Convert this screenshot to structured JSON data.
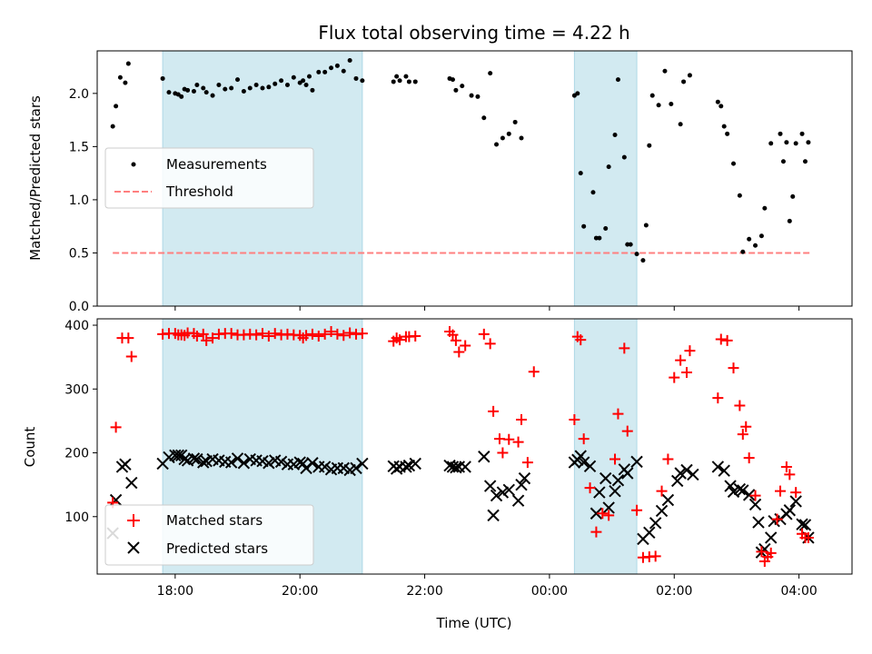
{
  "chart_data": [
    {
      "type": "scatter",
      "title": "Flux total observing time = 4.22 h",
      "xlabel": "",
      "ylabel": "Matched/Predicted stars",
      "xlim": [
        16.75,
        28.85
      ],
      "ylim": [
        0,
        2.4
      ],
      "yticks": [
        0.0,
        0.5,
        1.0,
        1.5,
        2.0
      ],
      "ytick_labels": [
        "0.0",
        "0.5",
        "1.0",
        "1.5",
        "2.0"
      ],
      "grid": false,
      "legend_location": "center-left",
      "shaded_intervals": [
        [
          17.8,
          21.0
        ],
        [
          24.4,
          25.4
        ]
      ],
      "series": [
        {
          "name": "Measurements",
          "kind": "scatter",
          "color": "#000000",
          "x": [
            17.0,
            17.05,
            17.12,
            17.2,
            17.25,
            17.8,
            17.9,
            18.0,
            18.05,
            18.1,
            18.15,
            18.2,
            18.3,
            18.35,
            18.45,
            18.5,
            18.6,
            18.7,
            18.8,
            18.9,
            19.0,
            19.1,
            19.2,
            19.3,
            19.4,
            19.5,
            19.6,
            19.7,
            19.8,
            19.9,
            20.0,
            20.05,
            20.1,
            20.15,
            20.2,
            20.3,
            20.4,
            20.5,
            20.6,
            20.7,
            20.8,
            20.9,
            21.0,
            21.5,
            21.55,
            21.6,
            21.7,
            21.75,
            21.85,
            22.4,
            22.45,
            22.5,
            22.6,
            22.75,
            22.85,
            22.95,
            23.05,
            23.15,
            23.25,
            23.35,
            23.45,
            23.55,
            24.4,
            24.45,
            24.5,
            24.55,
            24.7,
            24.75,
            24.8,
            24.9,
            24.95,
            25.05,
            25.1,
            25.2,
            25.25,
            25.3,
            25.4,
            25.5,
            25.55,
            25.6,
            25.65,
            25.75,
            25.85,
            25.95,
            26.1,
            26.15,
            26.25,
            26.7,
            26.75,
            26.8,
            26.85,
            26.95,
            27.05,
            27.1,
            27.2,
            27.3,
            27.4,
            27.45,
            27.55,
            27.7,
            27.75,
            27.8,
            27.85,
            27.9,
            27.95,
            28.05,
            28.1,
            28.15
          ],
          "y": [
            1.69,
            1.88,
            2.15,
            2.1,
            2.28,
            2.14,
            2.01,
            2.0,
            1.99,
            1.97,
            2.04,
            2.03,
            2.02,
            2.08,
            2.05,
            2.01,
            1.98,
            2.08,
            2.04,
            2.05,
            2.13,
            2.02,
            2.05,
            2.08,
            2.05,
            2.06,
            2.09,
            2.12,
            2.08,
            2.15,
            2.1,
            2.12,
            2.08,
            2.16,
            2.03,
            2.2,
            2.2,
            2.24,
            2.26,
            2.21,
            2.31,
            2.14,
            2.12,
            2.11,
            2.16,
            2.12,
            2.16,
            2.11,
            2.11,
            2.14,
            2.13,
            2.03,
            2.07,
            1.98,
            1.97,
            1.77,
            2.19,
            1.52,
            1.58,
            1.62,
            1.73,
            1.58,
            1.98,
            2.0,
            1.25,
            0.75,
            1.07,
            0.64,
            0.64,
            0.73,
            1.31,
            1.61,
            2.13,
            1.4,
            0.58,
            0.58,
            0.49,
            0.43,
            0.76,
            1.51,
            1.98,
            1.89,
            2.21,
            1.9,
            1.71,
            2.11,
            2.17,
            1.92,
            1.88,
            1.69,
            1.62,
            1.34,
            1.04,
            0.51,
            0.63,
            0.57,
            0.66,
            0.92,
            1.53,
            1.62,
            1.36,
            1.54,
            0.8,
            1.03,
            1.53,
            1.62,
            1.36,
            1.54
          ]
        },
        {
          "name": "Threshold",
          "kind": "line",
          "style": "dashed",
          "color": "#ff7f7f",
          "x": [
            17.0,
            28.2
          ],
          "y": [
            0.5,
            0.5
          ]
        }
      ]
    },
    {
      "type": "scatter",
      "title": "",
      "xlabel": "Time (UTC)",
      "ylabel": "Count",
      "xlim": [
        16.75,
        28.85
      ],
      "ylim": [
        10,
        410
      ],
      "xticks": [
        18,
        20,
        22,
        24,
        26,
        28
      ],
      "xtick_labels": [
        "18:00",
        "20:00",
        "22:00",
        "00:00",
        "02:00",
        "04:00"
      ],
      "yticks": [
        100,
        200,
        300,
        400
      ],
      "ytick_labels": [
        "100",
        "200",
        "300",
        "400"
      ],
      "grid": false,
      "legend_location": "bottom-left",
      "shaded_intervals": [
        [
          17.8,
          21.0
        ],
        [
          24.4,
          25.4
        ]
      ],
      "series": [
        {
          "name": "Matched stars",
          "marker": "plus",
          "color": "#ff0000",
          "x": [
            17.0,
            17.05,
            17.15,
            17.25,
            17.3,
            17.8,
            17.9,
            18.0,
            18.05,
            18.1,
            18.15,
            18.2,
            18.3,
            18.35,
            18.45,
            18.5,
            18.6,
            18.7,
            18.8,
            18.9,
            19.0,
            19.1,
            19.2,
            19.3,
            19.4,
            19.5,
            19.6,
            19.7,
            19.8,
            19.9,
            20.0,
            20.05,
            20.1,
            20.2,
            20.3,
            20.4,
            20.5,
            20.6,
            20.7,
            20.8,
            20.9,
            21.0,
            21.5,
            21.55,
            21.6,
            21.7,
            21.75,
            21.85,
            22.4,
            22.45,
            22.5,
            22.55,
            22.65,
            22.95,
            23.05,
            23.1,
            23.2,
            23.25,
            23.35,
            23.5,
            23.55,
            23.65,
            23.75,
            24.4,
            24.45,
            24.5,
            24.55,
            24.65,
            24.75,
            24.85,
            24.95,
            25.05,
            25.1,
            25.2,
            25.25,
            25.4,
            25.5,
            25.6,
            25.7,
            25.8,
            25.9,
            26.0,
            26.1,
            26.2,
            26.25,
            26.7,
            26.75,
            26.85,
            26.95,
            27.05,
            27.1,
            27.15,
            27.2,
            27.3,
            27.4,
            27.45,
            27.5,
            27.55,
            27.65,
            27.7,
            27.8,
            27.85,
            27.95,
            28.05,
            28.1,
            28.15
          ],
          "y": [
            122,
            240,
            380,
            380,
            351,
            386,
            387,
            387,
            385,
            385,
            384,
            388,
            387,
            383,
            386,
            376,
            380,
            386,
            387,
            387,
            385,
            385,
            386,
            385,
            387,
            383,
            387,
            385,
            386,
            385,
            384,
            380,
            384,
            386,
            383,
            386,
            390,
            386,
            384,
            388,
            386,
            387,
            375,
            380,
            377,
            382,
            382,
            383,
            390,
            385,
            376,
            358,
            368,
            386,
            371,
            265,
            222,
            200,
            221,
            217,
            252,
            185,
            327,
            252,
            382,
            377,
            222,
            145,
            76,
            105,
            102,
            190,
            261,
            364,
            234,
            110,
            36,
            37,
            38,
            140,
            190,
            318,
            345,
            326,
            360,
            286,
            378,
            376,
            333,
            274,
            229,
            241,
            192,
            133,
            45,
            30,
            37,
            43,
            96,
            140,
            178,
            166,
            138,
            73,
            67,
            67
          ]
        },
        {
          "name": "Predicted stars",
          "marker": "x",
          "color": "#000000",
          "x": [
            17.0,
            17.05,
            17.15,
            17.2,
            17.3,
            17.8,
            17.9,
            18.0,
            18.05,
            18.1,
            18.15,
            18.2,
            18.3,
            18.35,
            18.45,
            18.5,
            18.6,
            18.7,
            18.8,
            18.9,
            19.0,
            19.1,
            19.2,
            19.3,
            19.4,
            19.5,
            19.6,
            19.7,
            19.8,
            19.9,
            20.0,
            20.05,
            20.1,
            20.2,
            20.3,
            20.4,
            20.5,
            20.6,
            20.7,
            20.8,
            20.9,
            21.0,
            21.5,
            21.55,
            21.6,
            21.7,
            21.75,
            21.85,
            22.4,
            22.45,
            22.5,
            22.55,
            22.65,
            22.95,
            23.05,
            23.1,
            23.15,
            23.25,
            23.35,
            23.5,
            23.55,
            23.6,
            24.4,
            24.45,
            24.5,
            24.55,
            24.65,
            24.75,
            24.8,
            24.9,
            24.95,
            25.05,
            25.1,
            25.2,
            25.25,
            25.4,
            25.5,
            25.6,
            25.7,
            25.8,
            25.9,
            26.05,
            26.1,
            26.2,
            26.3,
            26.7,
            26.8,
            26.9,
            26.95,
            27.05,
            27.1,
            27.2,
            27.3,
            27.35,
            27.4,
            27.45,
            27.55,
            27.6,
            27.7,
            27.8,
            27.85,
            27.95,
            28.05,
            28.1,
            28.15
          ],
          "y": [
            74,
            126,
            178,
            182,
            153,
            183,
            193,
            196,
            196,
            196,
            190,
            188,
            191,
            190,
            185,
            187,
            190,
            188,
            186,
            185,
            191,
            184,
            190,
            188,
            187,
            184,
            188,
            186,
            182,
            182,
            185,
            183,
            176,
            184,
            178,
            178,
            174,
            176,
            176,
            173,
            176,
            183,
            179,
            175,
            178,
            178,
            180,
            183,
            180,
            178,
            177,
            178,
            178,
            194,
            148,
            102,
            133,
            138,
            142,
            125,
            150,
            160,
            185,
            189,
            195,
            185,
            179,
            105,
            138,
            160,
            114,
            140,
            157,
            174,
            168,
            186,
            65,
            75,
            90,
            109,
            126,
            156,
            168,
            173,
            166,
            178,
            172,
            148,
            139,
            143,
            141,
            134,
            119,
            91,
            44,
            49,
            67,
            93,
            96,
            104,
            110,
            124,
            88,
            87,
            67
          ]
        }
      ]
    }
  ]
}
